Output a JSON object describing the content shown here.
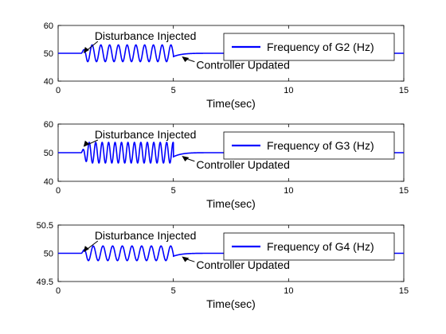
{
  "line_color": "#0000ff",
  "chart_data": [
    {
      "type": "line",
      "xlabel": "Time(sec)",
      "xlim": [
        0,
        15
      ],
      "ylim": [
        40,
        60
      ],
      "xticks": [
        "0",
        "5",
        "10",
        "15"
      ],
      "yticks": [
        "40",
        "50",
        "60"
      ],
      "legend": "Frequency of G2 (Hz)",
      "legend_position": "top-right",
      "annotations": [
        {
          "text": "Disturbance Injected",
          "x": 1.1,
          "y": 50
        },
        {
          "text": "Controller Updated",
          "x": 5.3,
          "y": 50
        }
      ],
      "series": [
        {
          "name": "Frequency of G2 (Hz)",
          "baseline": 50,
          "disturbance_start": 1.0,
          "controller_update": 5.0,
          "oscillation_amplitude": 3,
          "oscillation_period": 0.38,
          "x": [
            0,
            1.0,
            5.0,
            5.1,
            5.2,
            5.3,
            5.5,
            6.0,
            15
          ],
          "y": [
            50,
            50,
            48.8,
            48.8,
            49.5,
            50.4,
            50.6,
            50.1,
            50
          ]
        }
      ]
    },
    {
      "type": "line",
      "xlabel": "Time(sec)",
      "xlim": [
        0,
        15
      ],
      "ylim": [
        40,
        60
      ],
      "xticks": [
        "0",
        "5",
        "10",
        "15"
      ],
      "yticks": [
        "40",
        "50",
        "60"
      ],
      "legend": "Frequency of G3 (Hz)",
      "legend_position": "top-right",
      "annotations": [
        {
          "text": "Disturbance Injected",
          "x": 1.1,
          "y": 52
        },
        {
          "text": "Controller Updated",
          "x": 5.3,
          "y": 50
        }
      ],
      "series": [
        {
          "name": "Frequency of G3 (Hz)",
          "baseline": 50,
          "disturbance_start": 1.0,
          "controller_update": 5.0,
          "oscillation_amplitude": 3.6,
          "oscillation_period": 0.28,
          "x": [
            0,
            1.0,
            5.0,
            5.1,
            5.2,
            5.3,
            5.5,
            6.0,
            15
          ],
          "y": [
            50,
            50,
            48.6,
            48.6,
            49.4,
            50.5,
            50.5,
            50.1,
            50
          ]
        }
      ]
    },
    {
      "type": "line",
      "xlabel": "Time(sec)",
      "xlim": [
        0,
        15
      ],
      "ylim": [
        49.5,
        50.5
      ],
      "xticks": [
        "0",
        "5",
        "10",
        "15"
      ],
      "yticks": [
        "49.5",
        "50",
        "50.5"
      ],
      "legend": "Frequency of G4 (Hz)",
      "legend_position": "top-right",
      "annotations": [
        {
          "text": "Disturbance Injected",
          "x": 1.1,
          "y": 50.02
        },
        {
          "text": "Controller Updated",
          "x": 5.3,
          "y": 50
        }
      ],
      "series": [
        {
          "name": "Frequency of G4 (Hz)",
          "baseline": 50,
          "disturbance_start": 1.0,
          "controller_update": 5.0,
          "oscillation_amplitude": 0.13,
          "oscillation_period": 0.42,
          "x": [
            0,
            1.0,
            5.0,
            5.1,
            5.2,
            5.3,
            5.5,
            6.0,
            15
          ],
          "y": [
            50,
            50,
            49.9,
            49.9,
            49.95,
            50.04,
            50.03,
            50.01,
            50
          ]
        }
      ]
    }
  ]
}
